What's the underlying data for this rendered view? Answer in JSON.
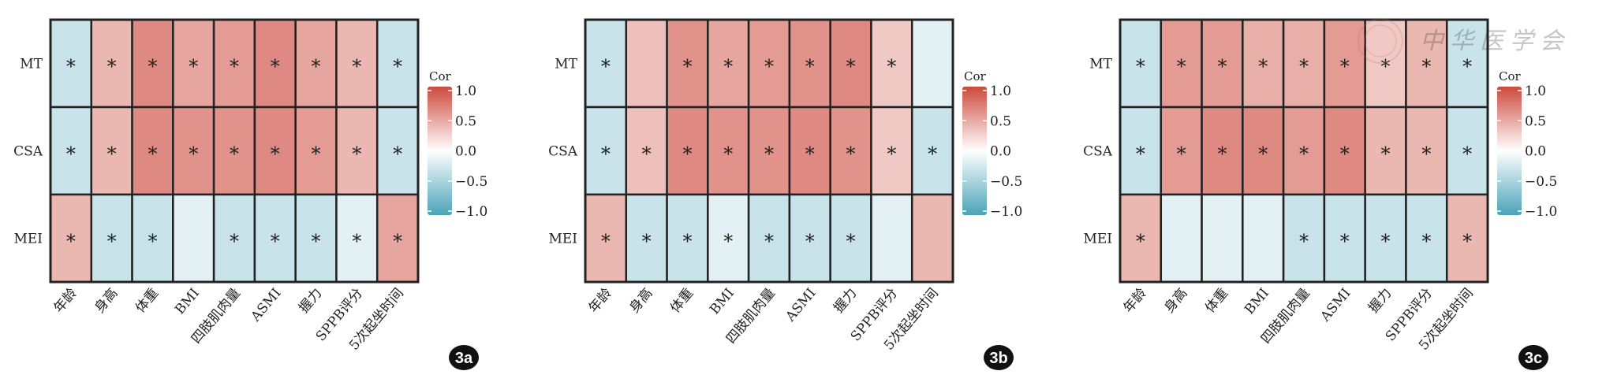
{
  "chart_data": [
    {
      "type": "heatmap",
      "panel_label": "3a",
      "legend_title": "Cor",
      "legend_ticks": [
        "1.0",
        "0.5",
        "0.0",
        "−0.5",
        "−1.0"
      ],
      "legend_tick_values": [
        1.0,
        0.5,
        0.0,
        -0.5,
        -1.0
      ],
      "color_range": [
        -1,
        1
      ],
      "colors": {
        "low": "#4aa3b8",
        "mid": "#ffffff",
        "high": "#cc4a3d"
      },
      "rows": [
        "MT",
        "CSA",
        "MEI"
      ],
      "columns": [
        "年龄",
        "身高",
        "体重",
        "BMI",
        "四肢肌肉量",
        "ASMI",
        "握力",
        "SPPB评分",
        "5次起坐时间"
      ],
      "values": [
        [
          -0.3,
          0.4,
          0.65,
          0.5,
          0.55,
          0.65,
          0.5,
          0.4,
          -0.3
        ],
        [
          -0.3,
          0.4,
          0.65,
          0.6,
          0.6,
          0.65,
          0.55,
          0.4,
          -0.3
        ],
        [
          0.4,
          -0.3,
          -0.3,
          -0.15,
          -0.3,
          -0.3,
          -0.3,
          -0.15,
          0.5
        ]
      ],
      "significant": [
        [
          1,
          1,
          1,
          1,
          1,
          1,
          1,
          1,
          1
        ],
        [
          1,
          1,
          1,
          1,
          1,
          1,
          1,
          1,
          1
        ],
        [
          1,
          1,
          1,
          0,
          1,
          1,
          1,
          1,
          1
        ]
      ],
      "significance_marker": "*"
    },
    {
      "type": "heatmap",
      "panel_label": "3b",
      "legend_title": "Cor",
      "legend_ticks": [
        "1.0",
        "0.5",
        "0.0",
        "−0.5",
        "−1.0"
      ],
      "legend_tick_values": [
        1.0,
        0.5,
        0.0,
        -0.5,
        -1.0
      ],
      "color_range": [
        -1,
        1
      ],
      "colors": {
        "low": "#4aa3b8",
        "mid": "#ffffff",
        "high": "#cc4a3d"
      },
      "rows": [
        "MT",
        "CSA",
        "MEI"
      ],
      "columns": [
        "年龄",
        "身高",
        "体重",
        "BMI",
        "四肢肌肉量",
        "ASMI",
        "握力",
        "SPPB评分",
        "5次起坐时间"
      ],
      "values": [
        [
          -0.3,
          0.35,
          0.6,
          0.5,
          0.55,
          0.6,
          0.65,
          0.3,
          -0.15
        ],
        [
          -0.3,
          0.35,
          0.65,
          0.6,
          0.6,
          0.65,
          0.6,
          0.3,
          -0.3
        ],
        [
          0.4,
          -0.3,
          -0.3,
          -0.15,
          -0.3,
          -0.3,
          -0.3,
          -0.15,
          0.4
        ]
      ],
      "significant": [
        [
          1,
          0,
          1,
          1,
          1,
          1,
          1,
          1,
          0
        ],
        [
          1,
          1,
          1,
          1,
          1,
          1,
          1,
          1,
          1
        ],
        [
          1,
          1,
          1,
          1,
          1,
          1,
          1,
          0,
          0
        ]
      ],
      "significance_marker": "*"
    },
    {
      "type": "heatmap",
      "panel_label": "3c",
      "legend_title": "Cor",
      "legend_ticks": [
        "1.0",
        "0.5",
        "0.0",
        "−0.5",
        "−1.0"
      ],
      "legend_tick_values": [
        1.0,
        0.5,
        0.0,
        -0.5,
        -1.0
      ],
      "color_range": [
        -1,
        1
      ],
      "colors": {
        "low": "#4aa3b8",
        "mid": "#ffffff",
        "high": "#cc4a3d"
      },
      "rows": [
        "MT",
        "CSA",
        "MEI"
      ],
      "columns": [
        "年龄",
        "身高",
        "体重",
        "BMI",
        "四肢肌肉量",
        "ASMI",
        "握力",
        "SPPB评分",
        "5次起坐时间"
      ],
      "values": [
        [
          -0.3,
          0.55,
          0.55,
          0.45,
          0.45,
          0.55,
          0.3,
          0.4,
          -0.3
        ],
        [
          -0.3,
          0.55,
          0.65,
          0.65,
          0.55,
          0.65,
          0.4,
          0.4,
          -0.3
        ],
        [
          0.4,
          -0.15,
          -0.15,
          -0.15,
          -0.3,
          -0.3,
          -0.3,
          -0.3,
          0.4
        ]
      ],
      "significant": [
        [
          1,
          1,
          1,
          1,
          1,
          1,
          1,
          1,
          1
        ],
        [
          1,
          1,
          1,
          1,
          1,
          1,
          1,
          1,
          1
        ],
        [
          1,
          0,
          0,
          0,
          1,
          1,
          1,
          1,
          1
        ]
      ],
      "significance_marker": "*"
    }
  ],
  "watermark": {
    "text": "中华医学会"
  }
}
